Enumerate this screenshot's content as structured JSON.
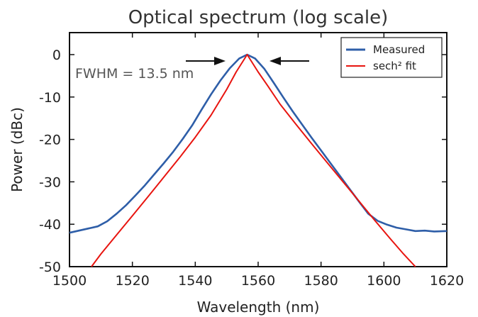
{
  "chart_data": {
    "type": "line",
    "title": "Optical spectrum (log scale)",
    "xlabel": "Wavelength (nm)",
    "ylabel": "Power (dBc)",
    "xlim": [
      1500,
      1620
    ],
    "ylim": [
      -50,
      5
    ],
    "xticks": [
      1500,
      1520,
      1540,
      1560,
      1580,
      1600,
      1620
    ],
    "yticks": [
      0,
      -10,
      -20,
      -30,
      -40,
      -50
    ],
    "grid": false,
    "legend_position": "top-right",
    "annotation": "FWHM = 13.5 nm",
    "colors": {
      "measured": "#2e5ea8",
      "fit": "#e8140f"
    },
    "series": [
      {
        "name": "Measured",
        "x": [
          1500,
          1503,
          1506,
          1509,
          1512,
          1515,
          1518,
          1521,
          1524,
          1527,
          1530,
          1533,
          1536,
          1539,
          1542,
          1545,
          1548,
          1551,
          1554,
          1556.5,
          1559,
          1562,
          1565,
          1568,
          1571,
          1574,
          1577,
          1580,
          1583,
          1586,
          1589,
          1592,
          1595,
          1598,
          1601,
          1604,
          1607,
          1610,
          1613,
          1616,
          1620
        ],
        "y": [
          -42,
          -41.5,
          -41,
          -40.5,
          -39.3,
          -37.5,
          -35.5,
          -33.2,
          -30.8,
          -28.2,
          -25.6,
          -22.9,
          -19.9,
          -16.7,
          -13.0,
          -9.4,
          -6.1,
          -3.2,
          -0.9,
          0,
          -0.9,
          -3.4,
          -6.7,
          -10.1,
          -13.4,
          -16.5,
          -19.6,
          -22.6,
          -25.6,
          -28.6,
          -31.6,
          -34.6,
          -37.5,
          -39.2,
          -40.1,
          -40.8,
          -41.2,
          -41.6,
          -41.5,
          -41.7,
          -41.6
        ]
      },
      {
        "name": "sech² fit",
        "x": [
          1507,
          1510,
          1515,
          1520,
          1525,
          1530,
          1535,
          1540,
          1545,
          1550,
          1553,
          1556.5,
          1560,
          1563,
          1567,
          1572,
          1577,
          1582,
          1587,
          1592,
          1597,
          1602,
          1606,
          1610
        ],
        "y": [
          -50,
          -47.0,
          -42.5,
          -38.0,
          -33.5,
          -28.9,
          -24.3,
          -19.5,
          -14.3,
          -8.2,
          -4.1,
          0,
          -4.1,
          -7.3,
          -11.7,
          -16.4,
          -21.0,
          -25.5,
          -30.0,
          -34.5,
          -39.0,
          -43.4,
          -46.8,
          -50
        ]
      }
    ]
  }
}
